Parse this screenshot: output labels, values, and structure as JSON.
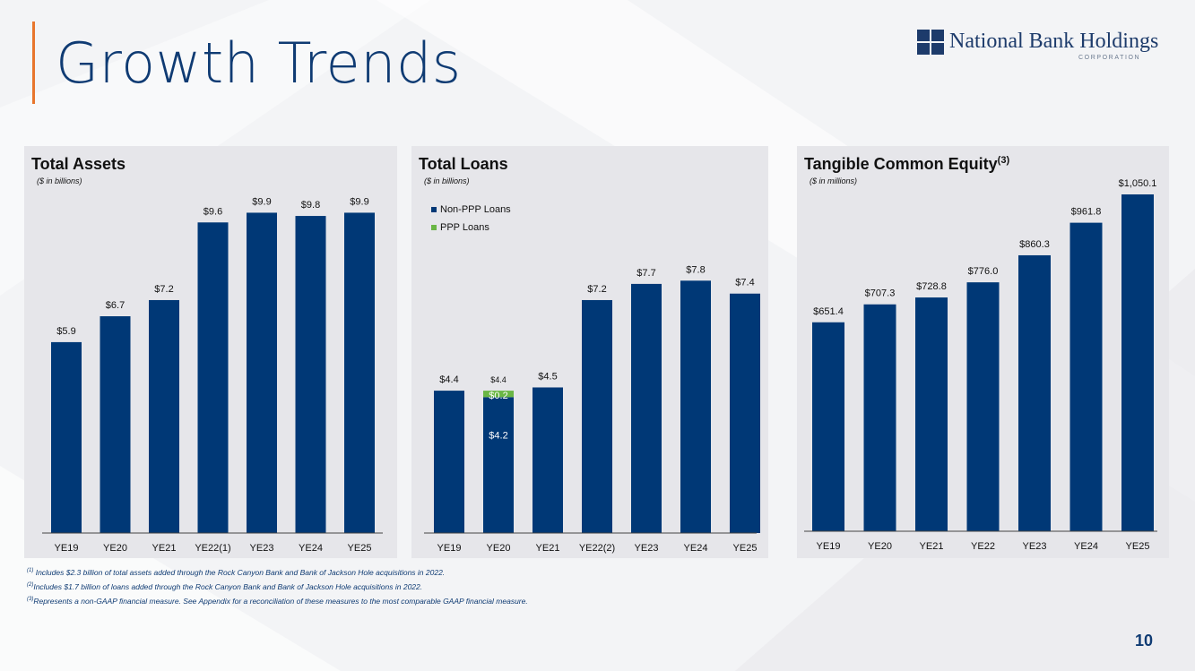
{
  "header": {
    "title": "Growth Trends",
    "logo_name": "National Bank Holdings",
    "logo_sub": "CORPORATION"
  },
  "colors": {
    "bar": "#003876",
    "ppp": "#6ab645",
    "accent": "#e8762d",
    "title": "#0f3b73"
  },
  "chart_data": [
    {
      "type": "bar",
      "title": "Total Assets",
      "subtitle": "($ in billions)",
      "categories": [
        "YE19",
        "YE20",
        "YE21",
        "YE22(1)",
        "YE23",
        "YE24",
        "YE25"
      ],
      "values": [
        5.9,
        6.7,
        7.2,
        9.6,
        9.9,
        9.8,
        9.9
      ],
      "labels": [
        "$5.9",
        "$6.7",
        "$7.2",
        "$9.6",
        "$9.9",
        "$9.8",
        "$9.9"
      ],
      "ylim": [
        0,
        10.3
      ]
    },
    {
      "type": "bar",
      "title": "Total Loans",
      "subtitle": "($ in billions)",
      "legend": [
        "Non-PPP Loans",
        "PPP Loans"
      ],
      "categories": [
        "YE19",
        "YE20",
        "YE21",
        "YE22(2)",
        "YE23",
        "YE24",
        "YE25"
      ],
      "series": [
        {
          "name": "Non-PPP Loans",
          "values": [
            4.4,
            4.2,
            4.5,
            7.2,
            7.7,
            7.8,
            7.4
          ]
        },
        {
          "name": "PPP Loans",
          "values": [
            0,
            0.2,
            0,
            0,
            0,
            0,
            0
          ]
        }
      ],
      "labels": [
        "$4.4",
        "$4.4",
        "$4.5",
        "$7.2",
        "$7.7",
        "$7.8",
        "$7.4"
      ],
      "segment_labels": {
        "index": 1,
        "non_ppp": "$4.2",
        "ppp": "$0.2"
      },
      "ylim": [
        0,
        10.3
      ]
    },
    {
      "type": "bar",
      "title": "Tangible Common Equity",
      "title_sup": "(3)",
      "subtitle": "($ in millions)",
      "categories": [
        "YE19",
        "YE20",
        "YE21",
        "YE22",
        "YE23",
        "YE24",
        "YE25"
      ],
      "values": [
        651.4,
        707.3,
        728.8,
        776.0,
        860.3,
        961.8,
        1050.1
      ],
      "labels": [
        "$651.4",
        "$707.3",
        "$728.8",
        "$776.0",
        "$860.3",
        "$961.8",
        "$1,050.1"
      ],
      "ylim": [
        0,
        1050.1
      ]
    }
  ],
  "footnotes": [
    {
      "marker": "(1)",
      "text": " Includes $2.3 billion of total assets added through the Rock Canyon Bank and Bank of Jackson Hole acquisitions in 2022."
    },
    {
      "marker": "(2)",
      "text": "Includes $1.7 billion of loans added through the Rock Canyon Bank and Bank of Jackson Hole acquisitions in 2022."
    },
    {
      "marker": "(3)",
      "text": "Represents a non-GAAP financial measure.  See Appendix for a reconciliation of these measures to the most comparable GAAP financial measure."
    }
  ],
  "page_number": "10"
}
